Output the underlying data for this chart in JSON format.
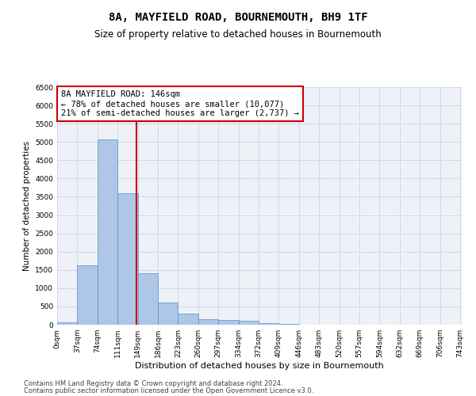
{
  "title": "8A, MAYFIELD ROAD, BOURNEMOUTH, BH9 1TF",
  "subtitle": "Size of property relative to detached houses in Bournemouth",
  "xlabel": "Distribution of detached houses by size in Bournemouth",
  "ylabel": "Number of detached properties",
  "footer1": "Contains HM Land Registry data © Crown copyright and database right 2024.",
  "footer2": "Contains public sector information licensed under the Open Government Licence v3.0.",
  "annotation_title": "8A MAYFIELD ROAD: 146sqm",
  "annotation_line1": "← 78% of detached houses are smaller (10,077)",
  "annotation_line2": "21% of semi-detached houses are larger (2,737) →",
  "property_size": 146,
  "bin_width": 37,
  "bar_values": [
    75,
    1625,
    5075,
    3600,
    1400,
    600,
    300,
    150,
    125,
    100,
    50,
    25,
    10,
    5,
    5,
    5,
    5,
    5,
    5,
    5
  ],
  "bar_color": "#aec6e8",
  "bar_edge_color": "#5a8fc4",
  "vline_color": "#cc0000",
  "vline_x": 146,
  "annotation_box_color": "#cc0000",
  "ylim": [
    0,
    6500
  ],
  "yticks": [
    0,
    500,
    1000,
    1500,
    2000,
    2500,
    3000,
    3500,
    4000,
    4500,
    5000,
    5500,
    6000,
    6500
  ],
  "xlim": [
    0,
    743
  ],
  "xtick_labels": [
    "0sqm",
    "37sqm",
    "74sqm",
    "111sqm",
    "149sqm",
    "186sqm",
    "223sqm",
    "260sqm",
    "297sqm",
    "334sqm",
    "372sqm",
    "409sqm",
    "446sqm",
    "483sqm",
    "520sqm",
    "557sqm",
    "594sqm",
    "632sqm",
    "669sqm",
    "706sqm",
    "743sqm"
  ],
  "grid_color": "#d0d8e8",
  "bg_color": "#eef2f8",
  "title_fontsize": 10,
  "subtitle_fontsize": 8.5,
  "annotation_fontsize": 7.5,
  "axis_label_fontsize": 7.5,
  "tick_fontsize": 6.5,
  "footer_fontsize": 6.0
}
